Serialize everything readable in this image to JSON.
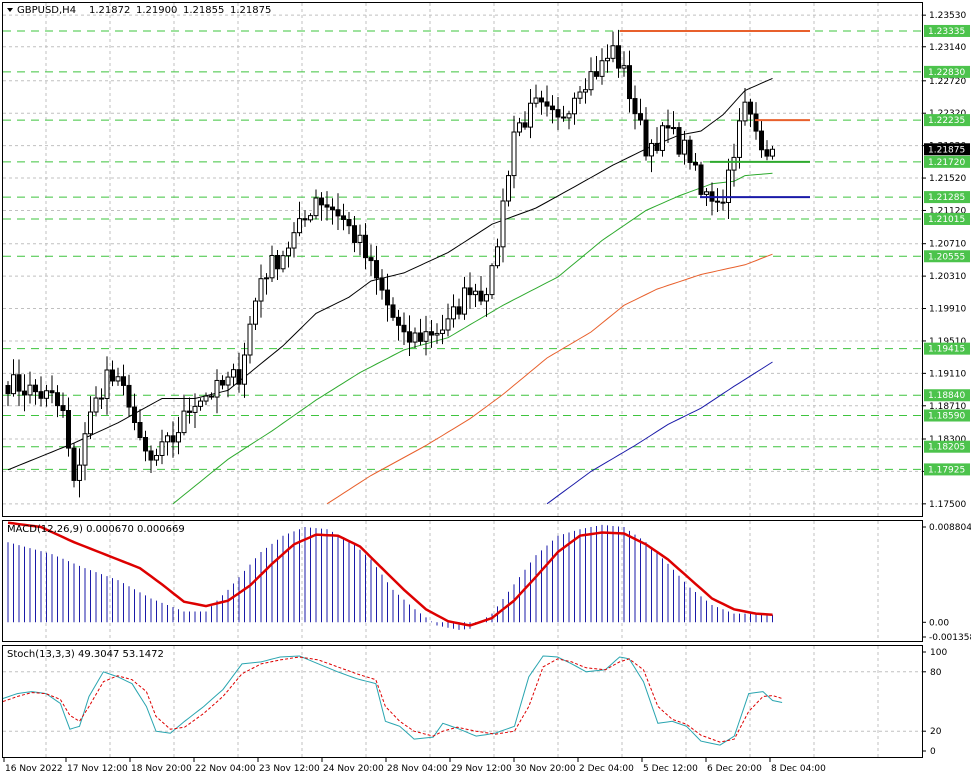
{
  "chart_data": [
    {
      "type": "candlestick",
      "title": "GBPUSD,H4",
      "ohlc_header": [
        "1.21872",
        "1.21900",
        "1.21855",
        "1.21875"
      ],
      "ylim": [
        1.1735,
        1.2368
      ],
      "y_ticks": [
        "1.23530",
        "1.23140",
        "1.22720",
        "1.22320",
        "1.21920",
        "1.21520",
        "1.21120",
        "1.20710",
        "1.20310",
        "1.19910",
        "1.19510",
        "1.19110",
        "1.18710",
        "1.18300",
        "1.17900",
        "1.17500"
      ],
      "current_price": "1.21875",
      "horizontal_levels": [
        "1.23335",
        "1.22830",
        "1.22235",
        "1.21720",
        "1.21285",
        "1.21015",
        "1.20555",
        "1.19415",
        "1.18840",
        "1.18590",
        "1.18205",
        "1.17925"
      ],
      "drawn_lines": [
        {
          "price": 1.23335,
          "color": "#e8602c"
        },
        {
          "price": 1.22235,
          "color": "#e8602c"
        },
        {
          "price": 1.2172,
          "color": "#2eaa2e"
        },
        {
          "price": 1.21285,
          "color": "#1a1aa8"
        }
      ],
      "x_tick_labels": [
        "16 Nov 2022",
        "17 Nov 12:00",
        "18 Nov 20:00",
        "22 Nov 04:00",
        "23 Nov 12:00",
        "24 Nov 20:00",
        "28 Nov 04:00",
        "29 Nov 12:00",
        "30 Nov 20:00",
        "2 Dec 04:00",
        "5 Dec 12:00",
        "6 Dec 20:00",
        "8 Dec 04:00"
      ],
      "waypoints": [
        [
          0,
          1.19
        ],
        [
          4,
          1.189
        ],
        [
          8,
          1.188
        ],
        [
          10,
          1.186
        ],
        [
          12,
          1.177
        ],
        [
          14,
          1.184
        ],
        [
          18,
          1.191
        ],
        [
          22,
          1.188
        ],
        [
          24,
          1.182
        ],
        [
          26,
          1.18
        ],
        [
          30,
          1.183
        ],
        [
          34,
          1.188
        ],
        [
          38,
          1.189
        ],
        [
          42,
          1.191
        ],
        [
          46,
          1.203
        ],
        [
          50,
          1.206
        ],
        [
          54,
          1.21
        ],
        [
          56,
          1.213
        ],
        [
          60,
          1.211
        ],
        [
          64,
          1.207
        ],
        [
          66,
          1.204
        ],
        [
          68,
          1.201
        ],
        [
          72,
          1.195
        ],
        [
          76,
          1.196
        ],
        [
          80,
          1.197
        ],
        [
          84,
          1.202
        ],
        [
          86,
          1.201
        ],
        [
          88,
          1.203
        ],
        [
          90,
          1.212
        ],
        [
          92,
          1.221
        ],
        [
          96,
          1.224
        ],
        [
          100,
          1.222
        ],
        [
          104,
          1.227
        ],
        [
          108,
          1.229
        ],
        [
          110,
          1.231
        ],
        [
          112,
          1.228
        ],
        [
          116,
          1.219
        ],
        [
          120,
          1.221
        ],
        [
          124,
          1.218
        ],
        [
          126,
          1.213
        ],
        [
          130,
          1.213
        ],
        [
          132,
          1.219
        ],
        [
          134,
          1.224
        ],
        [
          136,
          1.221
        ],
        [
          138,
          1.219
        ],
        [
          139,
          1.21875
        ]
      ],
      "moving_averages": [
        {
          "color": "#000000",
          "anchors": [
            [
              0,
              1.1792
            ],
            [
              12,
              1.1825
            ],
            [
              20,
              1.185
            ],
            [
              24,
              1.1865
            ],
            [
              28,
              1.188
            ],
            [
              34,
              1.188
            ],
            [
              40,
              1.189
            ],
            [
              50,
              1.1945
            ],
            [
              56,
              1.1985
            ],
            [
              62,
              1.2005
            ],
            [
              66,
              1.2025
            ],
            [
              72,
              1.2035
            ],
            [
              80,
              1.206
            ],
            [
              88,
              1.2095
            ],
            [
              96,
              1.2115
            ],
            [
              104,
              1.2145
            ],
            [
              110,
              1.2168
            ],
            [
              116,
              1.2188
            ],
            [
              122,
              1.2205
            ],
            [
              126,
              1.221
            ],
            [
              130,
              1.223
            ],
            [
              134,
              1.226
            ],
            [
              139,
              1.2275
            ]
          ]
        },
        {
          "color": "#2eaa2e",
          "anchors": [
            [
              30,
              1.175
            ],
            [
              40,
              1.1805
            ],
            [
              48,
              1.184
            ],
            [
              56,
              1.1878
            ],
            [
              64,
              1.1912
            ],
            [
              72,
              1.194
            ],
            [
              80,
              1.1955
            ],
            [
              90,
              1.1995
            ],
            [
              100,
              1.203
            ],
            [
              108,
              1.2075
            ],
            [
              116,
              1.2112
            ],
            [
              122,
              1.213
            ],
            [
              128,
              1.2145
            ],
            [
              132,
              1.2148
            ],
            [
              134,
              1.2155
            ],
            [
              139,
              1.2158
            ]
          ]
        },
        {
          "color": "#e8602c",
          "anchors": [
            [
              58,
              1.175
            ],
            [
              66,
              1.1785
            ],
            [
              76,
              1.1822
            ],
            [
              84,
              1.1855
            ],
            [
              90,
              1.1885
            ],
            [
              98,
              1.193
            ],
            [
              106,
              1.1962
            ],
            [
              112,
              1.1995
            ],
            [
              118,
              1.2015
            ],
            [
              126,
              1.2033
            ],
            [
              134,
              1.2045
            ],
            [
              139,
              1.2058
            ]
          ]
        },
        {
          "color": "#1a1aa8",
          "anchors": [
            [
              98,
              1.175
            ],
            [
              106,
              1.179
            ],
            [
              114,
              1.1822
            ],
            [
              120,
              1.1848
            ],
            [
              126,
              1.1868
            ],
            [
              132,
              1.1895
            ],
            [
              139,
              1.1925
            ]
          ]
        }
      ]
    },
    {
      "type": "bar",
      "title": "MACD(12,26,9) 0.000670 0.000669",
      "y_ticks": [
        "0.008804",
        "0.00",
        "-0.001358"
      ],
      "ylim": [
        -0.001358,
        0.008804
      ],
      "histogram_anchors": [
        [
          0,
          0.0074
        ],
        [
          8,
          0.0063
        ],
        [
          14,
          0.005
        ],
        [
          20,
          0.0039
        ],
        [
          26,
          0.0022
        ],
        [
          32,
          0.001
        ],
        [
          36,
          0.001
        ],
        [
          40,
          0.003
        ],
        [
          46,
          0.0065
        ],
        [
          50,
          0.008
        ],
        [
          54,
          0.0088
        ],
        [
          58,
          0.0086
        ],
        [
          62,
          0.0076
        ],
        [
          66,
          0.0058
        ],
        [
          70,
          0.003
        ],
        [
          74,
          0.0012
        ],
        [
          78,
          -0.0003
        ],
        [
          82,
          -0.0007
        ],
        [
          84,
          -0.0006
        ],
        [
          88,
          0.0008
        ],
        [
          92,
          0.0035
        ],
        [
          96,
          0.0062
        ],
        [
          100,
          0.008
        ],
        [
          104,
          0.0086
        ],
        [
          108,
          0.009
        ],
        [
          112,
          0.0088
        ],
        [
          116,
          0.0074
        ],
        [
          120,
          0.0054
        ],
        [
          124,
          0.0032
        ],
        [
          128,
          0.0016
        ],
        [
          132,
          0.0008
        ],
        [
          136,
          0.0008
        ],
        [
          139,
          0.0007
        ]
      ],
      "signal_anchors": [
        [
          0,
          0.0092
        ],
        [
          6,
          0.0088
        ],
        [
          12,
          0.0074
        ],
        [
          18,
          0.0062
        ],
        [
          24,
          0.005
        ],
        [
          28,
          0.0035
        ],
        [
          32,
          0.0019
        ],
        [
          36,
          0.0015
        ],
        [
          40,
          0.002
        ],
        [
          44,
          0.0034
        ],
        [
          48,
          0.0054
        ],
        [
          52,
          0.0072
        ],
        [
          56,
          0.0081
        ],
        [
          60,
          0.008
        ],
        [
          64,
          0.007
        ],
        [
          68,
          0.005
        ],
        [
          72,
          0.003
        ],
        [
          76,
          0.0012
        ],
        [
          80,
          0.0001
        ],
        [
          84,
          -0.0003
        ],
        [
          88,
          0.0004
        ],
        [
          92,
          0.002
        ],
        [
          96,
          0.0042
        ],
        [
          100,
          0.0065
        ],
        [
          104,
          0.008
        ],
        [
          108,
          0.0083
        ],
        [
          112,
          0.0082
        ],
        [
          116,
          0.0072
        ],
        [
          120,
          0.0058
        ],
        [
          124,
          0.004
        ],
        [
          128,
          0.0022
        ],
        [
          132,
          0.0012
        ],
        [
          136,
          0.0008
        ],
        [
          139,
          0.0007
        ]
      ],
      "signal_color": "#dd0000",
      "histogram_color": "#1a1aa8"
    },
    {
      "type": "line",
      "title": "Stoch(13,3,3) 49.3047 53.1472",
      "y_ticks": [
        "100",
        "80",
        "20",
        "0"
      ],
      "ylim": [
        0,
        100
      ],
      "series": [
        {
          "color": "#2aa5b0",
          "anchors": [
            [
              0,
              53
            ],
            [
              3,
              58
            ],
            [
              6,
              60
            ],
            [
              9,
              58
            ],
            [
              12,
              48
            ],
            [
              14,
              22
            ],
            [
              16,
              25
            ],
            [
              18,
              55
            ],
            [
              21,
              80
            ],
            [
              24,
              75
            ],
            [
              27,
              68
            ],
            [
              30,
              45
            ],
            [
              32,
              20
            ],
            [
              35,
              18
            ],
            [
              38,
              30
            ],
            [
              42,
              45
            ],
            [
              46,
              62
            ],
            [
              50,
              88
            ],
            [
              54,
              90
            ],
            [
              58,
              95
            ],
            [
              62,
              96
            ],
            [
              66,
              88
            ],
            [
              70,
              80
            ],
            [
              74,
              73
            ],
            [
              78,
              68
            ],
            [
              80,
              30
            ],
            [
              83,
              25
            ],
            [
              86,
              12
            ],
            [
              90,
              14
            ],
            [
              92,
              28
            ],
            [
              95,
              23
            ],
            [
              99,
              15
            ],
            [
              103,
              18
            ],
            [
              107,
              25
            ],
            [
              110,
              75
            ],
            [
              113,
              96
            ],
            [
              116,
              95
            ],
            [
              119,
              88
            ],
            [
              122,
              80
            ],
            [
              126,
              82
            ],
            [
              129,
              95
            ],
            [
              131,
              93
            ],
            [
              134,
              70
            ],
            [
              137,
              28
            ],
            [
              140,
              30
            ],
            [
              143,
              25
            ],
            [
              146,
              10
            ],
            [
              150,
              6
            ],
            [
              153,
              15
            ],
            [
              156,
              58
            ],
            [
              159,
              60
            ],
            [
              161,
              51
            ],
            [
              163,
              49
            ]
          ]
        },
        {
          "color": "#dd0000",
          "anchors": [
            [
              0,
              50
            ],
            [
              3,
              55
            ],
            [
              6,
              59
            ],
            [
              9,
              58
            ],
            [
              12,
              52
            ],
            [
              14,
              36
            ],
            [
              16,
              30
            ],
            [
              18,
              45
            ],
            [
              21,
              70
            ],
            [
              24,
              76
            ],
            [
              27,
              72
            ],
            [
              30,
              60
            ],
            [
              32,
              35
            ],
            [
              35,
              22
            ],
            [
              38,
              24
            ],
            [
              42,
              38
            ],
            [
              46,
              55
            ],
            [
              50,
              78
            ],
            [
              54,
              88
            ],
            [
              58,
              92
            ],
            [
              62,
              95
            ],
            [
              66,
              92
            ],
            [
              70,
              85
            ],
            [
              74,
              78
            ],
            [
              78,
              72
            ],
            [
              80,
              45
            ],
            [
              83,
              30
            ],
            [
              86,
              20
            ],
            [
              90,
              15
            ],
            [
              92,
              20
            ],
            [
              95,
              24
            ],
            [
              99,
              20
            ],
            [
              103,
              17
            ],
            [
              107,
              20
            ],
            [
              110,
              45
            ],
            [
              113,
              85
            ],
            [
              116,
              93
            ],
            [
              119,
              90
            ],
            [
              122,
              84
            ],
            [
              126,
              82
            ],
            [
              129,
              90
            ],
            [
              131,
              93
            ],
            [
              134,
              82
            ],
            [
              137,
              45
            ],
            [
              140,
              32
            ],
            [
              143,
              27
            ],
            [
              146,
              16
            ],
            [
              150,
              9
            ],
            [
              153,
              12
            ],
            [
              156,
              40
            ],
            [
              159,
              55
            ],
            [
              161,
              56
            ],
            [
              163,
              53
            ]
          ]
        }
      ]
    }
  ]
}
